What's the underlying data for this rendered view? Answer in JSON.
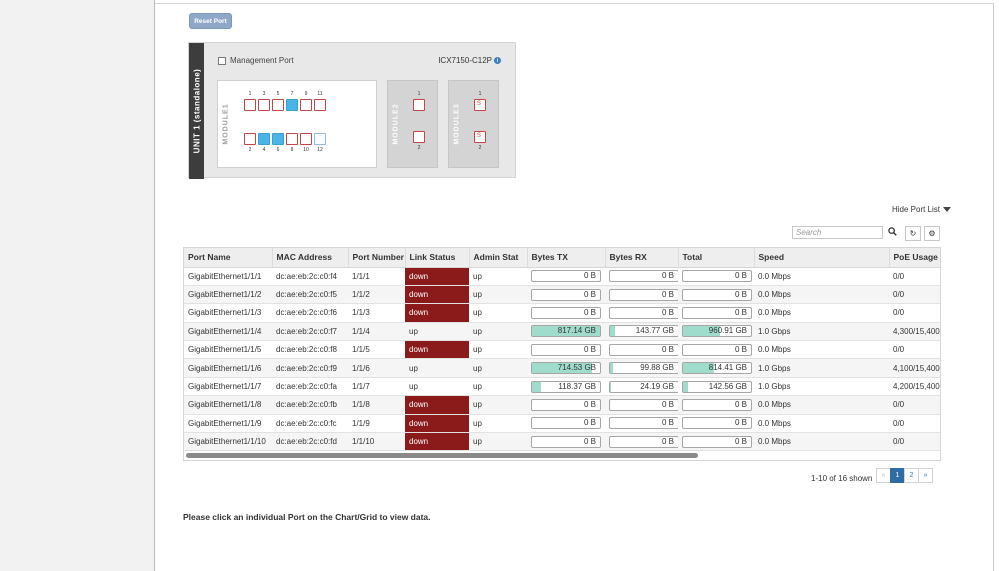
{
  "toolbar": {
    "reset_port_label": "Reset Port"
  },
  "unit_panel": {
    "unit_label": "UNIT 1 (standalone)",
    "management_port_label": "Management Port",
    "model": "ICX7150-C12P",
    "module1": {
      "label": "MODULE1",
      "top_ports": [
        {
          "num": "1",
          "state": "down"
        },
        {
          "num": "3",
          "state": "down"
        },
        {
          "num": "5",
          "state": "down"
        },
        {
          "num": "7",
          "state": "up"
        },
        {
          "num": "9",
          "state": "down"
        },
        {
          "num": "11",
          "state": "down"
        }
      ],
      "bottom_ports": [
        {
          "num": "2",
          "state": "down"
        },
        {
          "num": "4",
          "state": "up"
        },
        {
          "num": "6",
          "state": "up"
        },
        {
          "num": "8",
          "state": "down"
        },
        {
          "num": "10",
          "state": "down"
        },
        {
          "num": "12",
          "state": "empty"
        }
      ]
    },
    "module2": {
      "label": "MODULE2",
      "ports": [
        {
          "num": "1"
        },
        {
          "num": "2"
        }
      ]
    },
    "module3": {
      "label": "MODULE3",
      "ports": [
        {
          "num": "1"
        },
        {
          "num": "2"
        }
      ]
    }
  },
  "port_list": {
    "hide_label": "Hide Port List",
    "search_placeholder": "Search",
    "columns": [
      "Port Name",
      "MAC Address",
      "Port Number",
      "Link Status",
      "Admin Stat",
      "Bytes TX",
      "Bytes RX",
      "Total",
      "Speed",
      "PoE Usage (u"
    ],
    "rows": [
      {
        "name": "GigabitEthernet1/1/1",
        "mac": "dc:ae:eb:2c:c0:f4",
        "port": "1/1/1",
        "link": "down",
        "admin": "up",
        "tx": "0 B",
        "tx_pct": 0,
        "rx": "0 B",
        "rx_pct": 0,
        "total": "0 B",
        "total_pct": 0,
        "speed": "0.0 Mbps",
        "poe": "0/0"
      },
      {
        "name": "GigabitEthernet1/1/2",
        "mac": "dc:ae:eb:2c:c0:f5",
        "port": "1/1/2",
        "link": "down",
        "admin": "up",
        "tx": "0 B",
        "tx_pct": 0,
        "rx": "0 B",
        "rx_pct": 0,
        "total": "0 B",
        "total_pct": 0,
        "speed": "0.0 Mbps",
        "poe": "0/0"
      },
      {
        "name": "GigabitEthernet1/1/3",
        "mac": "dc:ae:eb:2c:c0:f6",
        "port": "1/1/3",
        "link": "down",
        "admin": "up",
        "tx": "0 B",
        "tx_pct": 0,
        "rx": "0 B",
        "rx_pct": 0,
        "total": "0 B",
        "total_pct": 0,
        "speed": "0.0 Mbps",
        "poe": "0/0"
      },
      {
        "name": "GigabitEthernet1/1/4",
        "mac": "dc:ae:eb:2c:c0:f7",
        "port": "1/1/4",
        "link": "up",
        "admin": "up",
        "tx": "817.14 GB",
        "tx_pct": 100,
        "rx": "143.77 GB",
        "rx_pct": 8,
        "total": "960.91 GB",
        "total_pct": 55,
        "speed": "1.0 Gbps",
        "poe": "4,300/15,400"
      },
      {
        "name": "GigabitEthernet1/1/5",
        "mac": "dc:ae:eb:2c:c0:f8",
        "port": "1/1/5",
        "link": "down",
        "admin": "up",
        "tx": "0 B",
        "tx_pct": 0,
        "rx": "0 B",
        "rx_pct": 0,
        "total": "0 B",
        "total_pct": 0,
        "speed": "0.0 Mbps",
        "poe": "0/0"
      },
      {
        "name": "GigabitEthernet1/1/6",
        "mac": "dc:ae:eb:2c:c0:f9",
        "port": "1/1/6",
        "link": "up",
        "admin": "up",
        "tx": "714.53 GB",
        "tx_pct": 88,
        "rx": "99.88 GB",
        "rx_pct": 5,
        "total": "814.41 GB",
        "total_pct": 45,
        "speed": "1.0 Gbps",
        "poe": "4,100/15,400"
      },
      {
        "name": "GigabitEthernet1/1/7",
        "mac": "dc:ae:eb:2c:c0:fa",
        "port": "1/1/7",
        "link": "up",
        "admin": "up",
        "tx": "118.37 GB",
        "tx_pct": 13,
        "rx": "24.19 GB",
        "rx_pct": 2,
        "total": "142.56 GB",
        "total_pct": 8,
        "speed": "1.0 Gbps",
        "poe": "4,200/15,400"
      },
      {
        "name": "GigabitEthernet1/1/8",
        "mac": "dc:ae:eb:2c:c0:fb",
        "port": "1/1/8",
        "link": "down",
        "admin": "up",
        "tx": "0 B",
        "tx_pct": 0,
        "rx": "0 B",
        "rx_pct": 0,
        "total": "0 B",
        "total_pct": 0,
        "speed": "0.0 Mbps",
        "poe": "0/0"
      },
      {
        "name": "GigabitEthernet1/1/9",
        "mac": "dc:ae:eb:2c:c0:fc",
        "port": "1/1/9",
        "link": "down",
        "admin": "up",
        "tx": "0 B",
        "tx_pct": 0,
        "rx": "0 B",
        "rx_pct": 0,
        "total": "0 B",
        "total_pct": 0,
        "speed": "0.0 Mbps",
        "poe": "0/0"
      },
      {
        "name": "GigabitEthernet1/1/10",
        "mac": "dc:ae:eb:2c:c0:fd",
        "port": "1/1/10",
        "link": "down",
        "admin": "up",
        "tx": "0 B",
        "tx_pct": 0,
        "rx": "0 B",
        "rx_pct": 0,
        "total": "0 B",
        "total_pct": 0,
        "speed": "0.0 Mbps",
        "poe": "0/0"
      }
    ],
    "count_text": "1-10 of 16 shown",
    "pager": {
      "prev": "«",
      "pages": [
        "1",
        "2"
      ],
      "current": "1",
      "next": "»"
    }
  },
  "hint_text": "Please click an individual Port on the Chart/Grid to view data.",
  "colors": {
    "down": "#8b1a1a",
    "port_up": "#49b5e6",
    "bar_fill": "#9fdccb",
    "accent": "#2e6da4"
  },
  "icons": {
    "search": "search-icon",
    "refresh": "refresh-icon",
    "settings": "gear-icon",
    "info": "info-icon",
    "caret": "caret-down-icon"
  }
}
